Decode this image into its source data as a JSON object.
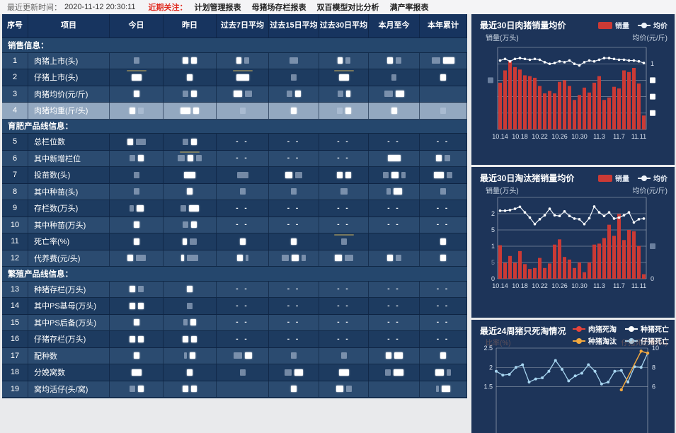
{
  "top_bar": {
    "updated_label": "最近更新时间：",
    "updated_time": "2020-11-12 20:30:11",
    "focus_label": "近期关注：",
    "links": [
      "计划管理报表",
      "母猪场存栏报表",
      "双百模型对比分析",
      "满产率报表"
    ]
  },
  "table": {
    "dash_text": "- -",
    "columns": [
      "序号",
      "项目",
      "今日",
      "昨日",
      "过去7日平均",
      "过去15日平均",
      "过去30日平均",
      "本月至今",
      "本年累计"
    ],
    "rows": [
      {
        "type": "section",
        "label": "销售信息："
      },
      {
        "type": "data",
        "no": "1",
        "label": "肉猪上市(头)",
        "shade": "light",
        "cells": [
          "D8",
          "B8 B8",
          "B7 D7",
          "D12",
          "B7 D7",
          "B8 D8",
          "D12 B16"
        ]
      },
      {
        "type": "data",
        "no": "2",
        "label": "仔猪上市(头)",
        "shade": "dark",
        "cells": [
          "T B14",
          "B8",
          "T B18",
          "D8",
          "T B14",
          "D7",
          "B8"
        ]
      },
      {
        "type": "data",
        "no": "3",
        "label": "肉猪均价(元/斤)",
        "shade": "light",
        "cells": [
          "B8",
          "D8 B8",
          "B12 D10",
          "D8 B8",
          "D8 B6",
          "D12 B12",
          ""
        ]
      },
      {
        "type": "data",
        "no": "4",
        "label": "肉猪均重(斤/头)",
        "shade": "highlight",
        "cells": [
          "B8 D8",
          "B14 B8",
          "D8",
          "B8",
          "D8 B8",
          "B8",
          "D8"
        ]
      },
      {
        "type": "section",
        "label": "育肥产品线信息："
      },
      {
        "type": "data",
        "no": "5",
        "label": "总栏位数",
        "shade": "dark",
        "cells": [
          "B8 D14",
          "D8 B8",
          "-",
          "-",
          "-",
          "-",
          "-"
        ]
      },
      {
        "type": "data",
        "no": "6",
        "label": "其中新增栏位",
        "shade": "light",
        "cells": [
          "D8 B8",
          "T D10 B8 D8",
          "-",
          "-",
          "-",
          "B18",
          "B8 D8"
        ]
      },
      {
        "type": "data",
        "no": "7",
        "label": "投苗数(头)",
        "shade": "dark",
        "cells": [
          "D8",
          "B16",
          "D16",
          "B10 D10",
          "B8 B8",
          "D8 B10 D6",
          "B14 D8"
        ]
      },
      {
        "type": "data",
        "no": "8",
        "label": "其中种苗(头)",
        "shade": "light",
        "cells": [
          "D8",
          "B8",
          "D8",
          "D8",
          "D10",
          "D6 B12",
          "D8"
        ]
      },
      {
        "type": "data",
        "no": "9",
        "label": "存栏数(万头)",
        "shade": "dark",
        "cells": [
          "D6 B10",
          "D8 B14",
          "-",
          "-",
          "-",
          "-",
          "-"
        ]
      },
      {
        "type": "data",
        "no": "10",
        "label": "其中种苗(万头)",
        "shade": "light",
        "cells": [
          "B8",
          "D8 B8",
          "-",
          "-",
          "-",
          "-",
          "-"
        ]
      },
      {
        "type": "data",
        "no": "11",
        "label": "死亡率(%)",
        "shade": "dark",
        "cells": [
          "B8",
          "B6 D10",
          "B8",
          "B8",
          "T D8",
          "",
          "B8"
        ]
      },
      {
        "type": "data",
        "no": "12",
        "label": "代养费(元/头)",
        "shade": "light",
        "cells": [
          "B8 D14",
          "B4 D16",
          "B8 D4",
          "D10 B10 D6",
          "B10 D12",
          "B8 D8",
          "B8"
        ]
      },
      {
        "type": "section",
        "label": "繁殖产品线信息："
      },
      {
        "type": "data",
        "no": "13",
        "label": "种猪存栏(万头)",
        "shade": "light",
        "cells": [
          "B8 D8",
          "B8",
          "-",
          "-",
          "-",
          "-",
          "-"
        ]
      },
      {
        "type": "data",
        "no": "14",
        "label": "其中PS基母(万头)",
        "shade": "dark",
        "cells": [
          "B8 B8",
          "D8",
          "-",
          "-",
          "-",
          "-",
          "-"
        ]
      },
      {
        "type": "data",
        "no": "15",
        "label": "其中PS后备(万头)",
        "shade": "light",
        "cells": [
          "B8",
          "D6 B8",
          "-",
          "-",
          "-",
          "-",
          "-"
        ]
      },
      {
        "type": "data",
        "no": "16",
        "label": "仔猪存栏(万头)",
        "shade": "dark",
        "cells": [
          "B8 B8",
          "B8 B8",
          "-",
          "-",
          "-",
          "-",
          "-"
        ]
      },
      {
        "type": "data",
        "no": "17",
        "label": "配种数",
        "shade": "light",
        "cells": [
          "B8",
          "D4 B8",
          "D12 B10",
          "D8",
          "D8",
          "B8 B12",
          "B8"
        ]
      },
      {
        "type": "data",
        "no": "18",
        "label": "分娩窝数",
        "shade": "dark",
        "cells": [
          "B14",
          "B8",
          "D8",
          "D10 B12",
          "B14",
          "D8 B14",
          "B12 D6"
        ]
      },
      {
        "type": "data",
        "no": "19",
        "label": "窝均活仔(头/窝)",
        "shade": "light",
        "cells": [
          "D8 B8",
          "B8 B8",
          "",
          "B8",
          "B10 D8",
          "",
          "D4 B12"
        ]
      }
    ]
  },
  "chart_data": [
    {
      "type": "bar",
      "combo": "bar+line",
      "title": "最近30日肉猪销量均价",
      "legend": [
        {
          "label": "销量",
          "marker": "bar",
          "color": "#cb3a35"
        },
        {
          "label": "均价",
          "marker": "line",
          "color": "#eef3fa"
        }
      ],
      "ylabel_left": "销量(万头)",
      "ylabel_right": "均价(元/斤)",
      "x_tick_labels": [
        "10.14",
        "10.18",
        "10.22",
        "10.26",
        "10.30",
        "11.3",
        "11.7",
        "11.11"
      ],
      "x_label_every": 4,
      "ymax": 100,
      "axis_note": "y-axis tick values redacted in source; bar and line values are percent of plot height",
      "bars": [
        57,
        72,
        83,
        76,
        73,
        66,
        65,
        63,
        53,
        44,
        47,
        44,
        58,
        60,
        53,
        36,
        42,
        51,
        45,
        57,
        65,
        36,
        39,
        52,
        50,
        72,
        70,
        75,
        56,
        17
      ],
      "line": [
        84,
        86,
        83,
        86,
        87,
        86,
        85,
        86,
        85,
        82,
        80,
        81,
        83,
        82,
        84,
        80,
        78,
        82,
        84,
        83,
        85,
        87,
        87,
        86,
        85,
        85,
        84,
        84,
        83,
        81
      ],
      "grid_divisions": 5,
      "left_ticks": [
        {
          "pos": 2,
          "blur": true,
          "dim": true
        }
      ],
      "right_ticks": [
        {
          "pos": 1,
          "label": "1"
        },
        {
          "pos": 2,
          "blur": true
        },
        {
          "pos": 3,
          "blur": true
        },
        {
          "pos": 4,
          "blur": true
        }
      ]
    },
    {
      "type": "bar",
      "combo": "bar+line",
      "title": "最近30日淘汰猪销量均价",
      "legend": [
        {
          "label": "销量",
          "marker": "bar",
          "color": "#cb3a35"
        },
        {
          "label": "均价",
          "marker": "line",
          "color": "#eef3fa"
        }
      ],
      "ylabel_left": "销量(万头)",
      "ylabel_right": "均价(元/斤)",
      "x_tick_labels": [
        "10.14",
        "10.18",
        "10.22",
        "10.26",
        "10.30",
        "11.3",
        "11.7",
        "11.11"
      ],
      "x_label_every": 4,
      "ymax": 2.5,
      "ylim": [
        0,
        2.5
      ],
      "bars": [
        1.03,
        0.49,
        0.7,
        0.49,
        0.85,
        0.45,
        0.3,
        0.33,
        0.64,
        0.33,
        0.47,
        1.05,
        1.21,
        0.67,
        0.59,
        0.33,
        0.5,
        0.2,
        0.5,
        1.05,
        1.08,
        1.25,
        1.66,
        1.32,
        1.99,
        1.19,
        1.5,
        1.46,
        1.01,
        0.14
      ],
      "line": [
        2.09,
        2.09,
        2.11,
        2.15,
        2.21,
        2.04,
        1.88,
        1.68,
        1.83,
        1.95,
        2.15,
        1.95,
        1.93,
        2.07,
        1.93,
        1.85,
        1.83,
        1.68,
        1.86,
        2.22,
        2.04,
        1.93,
        2.04,
        1.85,
        1.88,
        1.95,
        2.04,
        1.73,
        1.83,
        1.85
      ],
      "grid_divisions": 5,
      "left_ticks": [
        {
          "pos": 1,
          "label": "2"
        },
        {
          "pos": 2,
          "label": "5"
        },
        {
          "pos": 3,
          "label": "1"
        },
        {
          "pos": 4,
          "label": "5",
          "dim": true
        },
        {
          "pos": 5,
          "label": "0"
        }
      ],
      "right_ticks": [
        {
          "pos": 5,
          "label": "0"
        },
        {
          "pos": 3,
          "blur": true,
          "dim": true
        }
      ]
    },
    {
      "type": "line",
      "title": "最近24周猪只死淘情况",
      "legend": [
        {
          "label": "肉猪死淘",
          "marker": "line",
          "color": "#e8443a"
        },
        {
          "label": "种猪死亡",
          "marker": "line",
          "color": "#ffffff"
        },
        {
          "label": "种猪淘汰",
          "marker": "line",
          "color": "#f2a83e"
        },
        {
          "label": "仔猪死亡",
          "marker": "line",
          "color": "#a7d5f0"
        }
      ],
      "ylabel_left": "比率(%)",
      "ylabel_right": "仔猪死亡率(%)",
      "left_ticks": [
        "2.5",
        "2",
        "1.5"
      ],
      "right_ticks": [
        "10",
        "8",
        "6"
      ],
      "grid_values": [
        2.5,
        2.0,
        1.5
      ],
      "series": [
        {
          "name": "仔猪死亡",
          "color": "#a7d5f0",
          "values": [
            1.9,
            1.8,
            1.82,
            2.0,
            2.07,
            1.62,
            1.7,
            1.73,
            1.9,
            2.18,
            1.95,
            1.65,
            1.78,
            1.85,
            2.07,
            1.9,
            1.57,
            1.62,
            1.9,
            1.92,
            1.62,
            2.02,
            2.0,
            2.37
          ]
        },
        {
          "name": "种猪淘汰",
          "color": "#f2a83e",
          "points": [
            {
              "i": 19,
              "v": 1.42
            },
            {
              "i": 22,
              "v": 2.42
            },
            {
              "i": 23,
              "v": 2.37
            }
          ]
        }
      ]
    }
  ]
}
